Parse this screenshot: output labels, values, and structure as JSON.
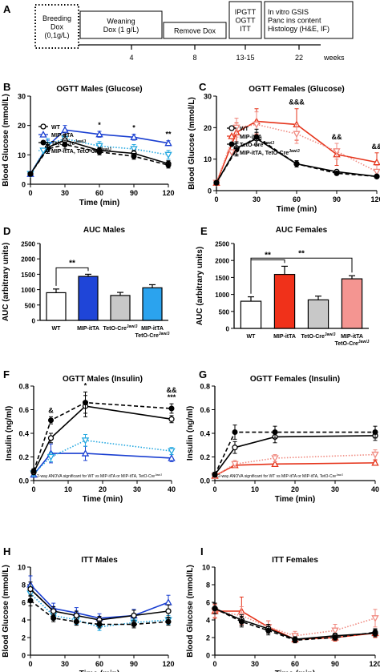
{
  "timeline": {
    "panel_label": "A",
    "boxes": [
      {
        "id": "breeding",
        "lines": [
          "Breeding",
          "Dox",
          "(0,1g/L)"
        ]
      },
      {
        "id": "weaning",
        "lines": [
          "Weaning",
          "Dox (1 g/L)"
        ]
      },
      {
        "id": "remove",
        "lines": [
          "Remove Dox"
        ]
      },
      {
        "id": "ipgtt",
        "lines": [
          "IPGTT",
          "OGTT",
          "ITT"
        ]
      },
      {
        "id": "invitro",
        "lines": [
          "In vitro GSIS",
          "Panc ins content",
          "Histology (H&E, IF)"
        ]
      }
    ],
    "ticks": [
      "4",
      "8",
      "13-15",
      "22"
    ],
    "unit": "weeks"
  },
  "legend_entries": [
    {
      "label": "WT",
      "color": "#000000",
      "marker": "open-circle",
      "dash": "solid"
    },
    {
      "label": "MIP-itTA",
      "color": "#1a3fd1",
      "marker": "open-triangle",
      "dash": "solid"
    },
    {
      "label": "TetO-Cre",
      "sup": "Jaw/J",
      "color": "#000000",
      "marker": "filled-circle",
      "dash": "dashed"
    },
    {
      "label": "MIP-itTA, TetO-Cre",
      "sup": "Jaw/J",
      "color": "#22a7e0",
      "marker": "open-tri-down",
      "dash": "dotted"
    }
  ],
  "legend_entries_f": [
    {
      "label": "WT",
      "color": "#000000",
      "marker": "open-circle",
      "dash": "solid"
    },
    {
      "label": "MIP-itTA",
      "color": "#e5331a",
      "marker": "open-triangle",
      "dash": "solid"
    },
    {
      "label": "TetO-Cre",
      "sup": "Jaw/J",
      "color": "#000000",
      "marker": "filled-circle",
      "dash": "dashed"
    },
    {
      "label": "MIP-itTA, TetO-Cre",
      "sup": "Jaw/J",
      "color": "#f08a80",
      "marker": "open-tri-down",
      "dash": "dotted"
    }
  ],
  "colors": {
    "wt": "#000000",
    "male_itta": "#1a3fd1",
    "male_dbl": "#22a7e0",
    "fem_itta": "#e5331a",
    "fem_dbl": "#f08a80",
    "fem_dbl_bar": "#f49591",
    "gray_bar": "#c8c8c8",
    "blue_bar": "#1f45d8",
    "light_blue_bar": "#2ba3ee",
    "red_bar": "#f0311a"
  },
  "chart_data": [
    {
      "panel": "B",
      "type": "line",
      "title": "OGTT Males (Glucose)",
      "xlabel": "Time (min)",
      "ylabel": "Blood Glucose (mmol/L)",
      "x": [
        0,
        15,
        30,
        60,
        90,
        120
      ],
      "xticks": [
        "0",
        "30",
        "60",
        "90",
        "120"
      ],
      "xlim": [
        0,
        120
      ],
      "ylim": [
        0,
        30
      ],
      "yticks": [
        "0",
        "10",
        "20",
        "30"
      ],
      "series": [
        {
          "name": "WT",
          "values": [
            3.5,
            12.5,
            15,
            11.5,
            10.5,
            7
          ]
        },
        {
          "name": "MIP-itTA",
          "values": [
            3.5,
            13,
            18.5,
            17,
            16,
            14
          ]
        },
        {
          "name": "TetO-Cre",
          "values": [
            3.5,
            12,
            13.5,
            11,
            9.5,
            6.5
          ]
        },
        {
          "name": "MIP-itTA, TetO-Cre",
          "values": [
            3.5,
            13.5,
            15.5,
            13,
            12,
            10
          ]
        }
      ],
      "errors": [
        [
          0.5,
          1.5,
          2,
          1,
          1,
          1
        ],
        [
          0.5,
          2,
          1.5,
          1,
          1,
          0.8
        ],
        [
          0.5,
          1.5,
          1.5,
          1,
          1,
          1
        ],
        [
          0.5,
          2,
          1.5,
          1.5,
          1.5,
          1.5
        ]
      ],
      "annotations": [
        {
          "x": 60,
          "text": "*"
        },
        {
          "x": 90,
          "text": "*"
        },
        {
          "x": 120,
          "text": "**"
        }
      ]
    },
    {
      "panel": "C",
      "type": "line",
      "title": "OGTT Females (Glucose)",
      "xlabel": "Time (min)",
      "ylabel": "Blood Glucose (mmol/L)",
      "x": [
        0,
        15,
        30,
        60,
        90,
        120
      ],
      "xticks": [
        "0",
        "30",
        "60",
        "90",
        "120"
      ],
      "xlim": [
        0,
        120
      ],
      "ylim": [
        0,
        30
      ],
      "yticks": [
        "0",
        "10",
        "20",
        "30"
      ],
      "series": [
        {
          "name": "WT",
          "values": [
            2.5,
            13.5,
            16.5,
            8.5,
            6,
            4.5
          ]
        },
        {
          "name": "MIP-itTA",
          "values": [
            2.5,
            18.5,
            22,
            21,
            11.5,
            9
          ]
        },
        {
          "name": "TetO-Cre",
          "values": [
            2.5,
            13,
            17,
            8.5,
            5.5,
            4.5
          ]
        },
        {
          "name": "MIP-itTA, TetO-Cre",
          "values": [
            2.5,
            20,
            21,
            18,
            12.5,
            6
          ]
        }
      ],
      "errors": [
        [
          0.5,
          2,
          2,
          1,
          0.5,
          0.5
        ],
        [
          0.5,
          3,
          4,
          5,
          3.5,
          3
        ],
        [
          0.5,
          2,
          2.5,
          1,
          0.5,
          0.5
        ],
        [
          0.5,
          3,
          4,
          3,
          2.5,
          2
        ]
      ],
      "annotations": [
        {
          "x": 60,
          "text": "&&&"
        },
        {
          "x": 90,
          "text": "&&"
        },
        {
          "x": 120,
          "text": "&&"
        }
      ]
    },
    {
      "panel": "D",
      "type": "bar",
      "title": "AUC Males",
      "ylabel": "AUC (arbitrary units)",
      "categories": [
        "WT",
        "MIP-itTA",
        "TetO-Cre Jaw/J",
        "MIP-itTA TetO-Cre Jaw/J"
      ],
      "values": [
        900,
        1430,
        810,
        1060
      ],
      "errors": [
        120,
        70,
        100,
        100
      ],
      "ylim": [
        0,
        2500
      ],
      "yticks": [
        "0",
        "500",
        "1000",
        "1500",
        "2000",
        "2500"
      ],
      "significance": [
        {
          "from": 0,
          "to": 1,
          "text": "**"
        }
      ]
    },
    {
      "panel": "E",
      "type": "bar",
      "title": "AUC Females",
      "ylabel": "AUC (arbitrary units)",
      "categories": [
        "WT",
        "MIP-itTA",
        "TetO-Cre Jaw/J",
        "MIP-itTA TetO-Cre Jaw/J"
      ],
      "values": [
        800,
        1590,
        840,
        1460
      ],
      "errors": [
        130,
        240,
        110,
        90
      ],
      "ylim": [
        0,
        2500
      ],
      "yticks": [
        "0",
        "500",
        "1000",
        "1500",
        "2000",
        "2500"
      ],
      "significance": [
        {
          "from": 0,
          "to": 1,
          "text": "**"
        },
        {
          "from": 0,
          "to": 3,
          "text": "**"
        }
      ]
    },
    {
      "panel": "F",
      "type": "line",
      "title": "OGTT Males (Insulin)",
      "xlabel": "Time (min)",
      "ylabel": "Insulin (ng/ml)",
      "x": [
        0,
        5,
        15,
        40
      ],
      "xticks": [
        "0",
        "10",
        "20",
        "30",
        "40"
      ],
      "xlim": [
        0,
        40
      ],
      "ylim": [
        0,
        0.8
      ],
      "yticks": [
        "0.0",
        "0.2",
        "0.4",
        "0.6",
        "0.8"
      ],
      "series": [
        {
          "name": "WT",
          "values": [
            0.07,
            0.36,
            0.63,
            0.52
          ]
        },
        {
          "name": "MIP-itTA",
          "values": [
            0.05,
            0.23,
            0.23,
            0.19
          ]
        },
        {
          "name": "TetO-Cre",
          "values": [
            0.08,
            0.51,
            0.66,
            0.61
          ]
        },
        {
          "name": "MIP-itTA, TetO-Cre",
          "values": [
            0.06,
            0.2,
            0.34,
            0.25
          ]
        }
      ],
      "errors": [
        [
          0.02,
          0.04,
          0.09,
          0.03
        ],
        [
          0.02,
          0.08,
          0.06,
          0.03
        ],
        [
          0.02,
          0.03,
          0.09,
          0.04
        ],
        [
          0.02,
          0.04,
          0.05,
          0.03
        ]
      ],
      "annotations": [
        {
          "x": 5,
          "text": "&"
        },
        {
          "x": 15,
          "text": "*"
        },
        {
          "x": 40,
          "text": "***"
        },
        {
          "x": 40,
          "text": "&&"
        }
      ],
      "footnote": "2-way ANOVA significant for WT vs MIP-itTA or MIP-itTA, TetO-Cre"
    },
    {
      "panel": "G",
      "type": "line",
      "title": "OGTT Females (Insulin)",
      "xlabel": "Time (min)",
      "ylabel": "Insulin (ng/ml)",
      "x": [
        0,
        5,
        15,
        40
      ],
      "xticks": [
        "0",
        "10",
        "20",
        "30",
        "40"
      ],
      "xlim": [
        0,
        40
      ],
      "ylim": [
        0,
        0.8
      ],
      "yticks": [
        "0.0",
        "0.2",
        "0.4",
        "0.6",
        "0.8"
      ],
      "series": [
        {
          "name": "WT",
          "values": [
            0.05,
            0.28,
            0.37,
            0.38
          ]
        },
        {
          "name": "MIP-itTA",
          "values": [
            0.04,
            0.13,
            0.14,
            0.15
          ]
        },
        {
          "name": "TetO-Cre",
          "values": [
            0.05,
            0.41,
            0.41,
            0.41
          ]
        },
        {
          "name": "MIP-itTA, TetO-Cre",
          "values": [
            0.04,
            0.14,
            0.19,
            0.22
          ]
        }
      ],
      "errors": [
        [
          0.02,
          0.05,
          0.05,
          0.04
        ],
        [
          0.02,
          0.02,
          0.02,
          0.02
        ],
        [
          0.02,
          0.06,
          0.05,
          0.05
        ],
        [
          0.02,
          0.03,
          0.03,
          0.04
        ]
      ],
      "footnote": "2-way ANOVA significant for WT vs MIP-itTA or MIP-itTA, TetO-Cre"
    },
    {
      "panel": "H",
      "type": "line",
      "title": "ITT Males",
      "xlabel": "Time (min)",
      "ylabel": "Blood Glucose (mmol/L)",
      "x": [
        0,
        20,
        40,
        60,
        90,
        120
      ],
      "xticks": [
        "0",
        "30",
        "60",
        "90",
        "120"
      ],
      "xlim": [
        0,
        120
      ],
      "ylim": [
        0,
        10
      ],
      "yticks": [
        "0",
        "2",
        "4",
        "6",
        "8",
        "10"
      ],
      "series": [
        {
          "name": "WT",
          "values": [
            7.5,
            5,
            4.5,
            4,
            4.5,
            5
          ]
        },
        {
          "name": "MIP-itTA",
          "values": [
            8,
            5.3,
            4.8,
            4.2,
            4.5,
            6
          ]
        },
        {
          "name": "TetO-Cre",
          "values": [
            6.2,
            4.2,
            3.8,
            3.5,
            3.5,
            3.8
          ]
        },
        {
          "name": "MIP-itTA, TetO-Cre",
          "values": [
            7,
            4.5,
            4,
            3.2,
            3.7,
            4
          ]
        }
      ],
      "errors": [
        [
          0.8,
          0.5,
          0.5,
          0.4,
          0.6,
          0.7
        ],
        [
          1,
          0.6,
          0.6,
          0.5,
          0.7,
          0.8
        ],
        [
          0.6,
          0.4,
          0.4,
          0.4,
          0.4,
          0.4
        ],
        [
          0.8,
          0.5,
          0.5,
          0.4,
          0.4,
          0.5
        ]
      ]
    },
    {
      "panel": "I",
      "type": "line",
      "title": "ITT Females",
      "xlabel": "Time (min)",
      "ylabel": "Blood Glucose (mmol/L)",
      "x": [
        0,
        20,
        40,
        60,
        90,
        120
      ],
      "xticks": [
        "0",
        "30",
        "60",
        "90",
        "120"
      ],
      "xlim": [
        0,
        120
      ],
      "ylim": [
        0,
        10
      ],
      "yticks": [
        "0",
        "2",
        "4",
        "6",
        "8",
        "10"
      ],
      "series": [
        {
          "name": "WT",
          "values": [
            5.3,
            4,
            3,
            1.8,
            2.2,
            2.5
          ]
        },
        {
          "name": "MIP-itTA",
          "values": [
            5,
            5,
            3.2,
            1.8,
            2,
            2.5
          ]
        },
        {
          "name": "TetO-Cre",
          "values": [
            5.3,
            3.8,
            2.8,
            1.7,
            2,
            2.6
          ]
        },
        {
          "name": "MIP-itTA, TetO-Cre",
          "values": [
            5,
            4.5,
            3.2,
            2.2,
            2.8,
            4.2
          ]
        }
      ],
      "errors": [
        [
          0.6,
          0.6,
          0.5,
          0.3,
          0.3,
          0.4
        ],
        [
          0.8,
          1.6,
          0.7,
          0.4,
          0.4,
          0.5
        ],
        [
          0.6,
          0.6,
          0.5,
          0.3,
          0.3,
          0.4
        ],
        [
          0.7,
          1,
          0.7,
          0.5,
          0.7,
          1
        ]
      ]
    }
  ]
}
